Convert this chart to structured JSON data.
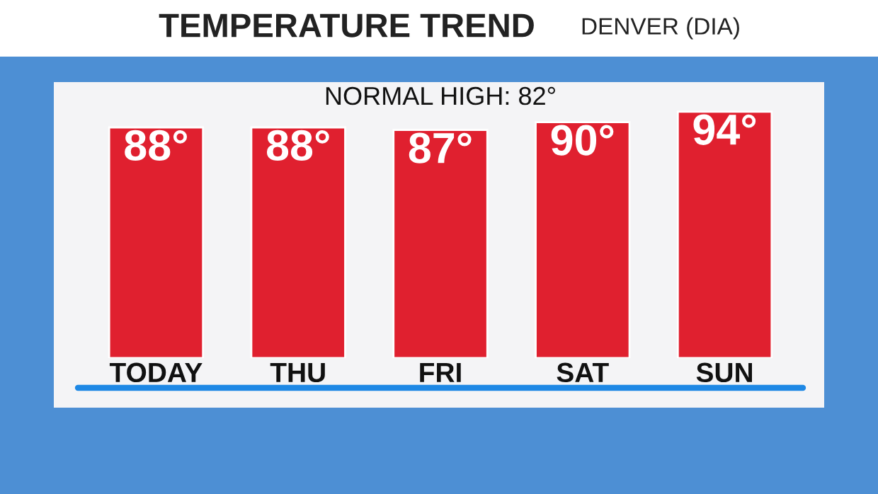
{
  "chart_data": {
    "type": "bar",
    "title": "TEMPERATURE TREND",
    "subtitle": "DENVER (DIA)",
    "annotations": [
      "NORMAL HIGH: 82°"
    ],
    "categories": [
      "TODAY",
      "THU",
      "FRI",
      "SAT",
      "SUN"
    ],
    "values": [
      88,
      88,
      87,
      90,
      94
    ],
    "value_labels": [
      "88°",
      "88°",
      "87°",
      "90°",
      "94°"
    ],
    "color": "#e0202f",
    "tick_labels": "x",
    "grid": false,
    "legend": false
  }
}
